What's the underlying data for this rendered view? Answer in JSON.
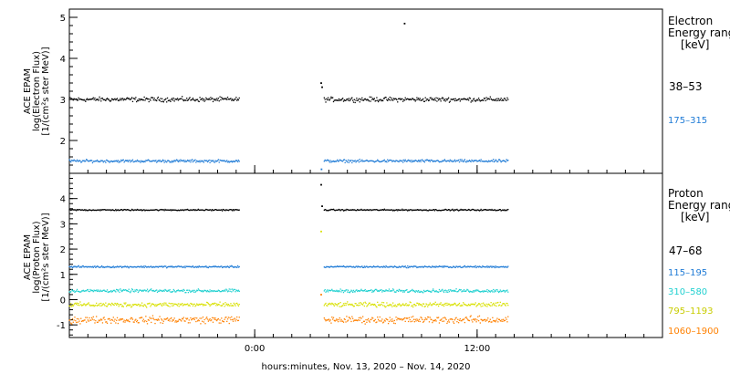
{
  "chart_data": [
    {
      "type": "scatter",
      "panel": "top",
      "ylabel": [
        "ACE EPAM",
        "log(Electron Flux)",
        "[1/(cm²s ster MeV)]"
      ],
      "ylim": [
        1.2,
        5.2
      ],
      "y_ticks": [
        2,
        3,
        4,
        5
      ],
      "legend_title": [
        "Electron",
        "Energy range",
        "[keV]"
      ],
      "legend_placement": "right",
      "grid": false,
      "series": [
        {
          "name": "38–53",
          "color": "#000000",
          "baseline": 3.0,
          "spread": 0.08,
          "segments": [
            [
              "2020-11-13 14:00",
              "2020-11-13 23:10"
            ],
            [
              "2020-11-14 03:45",
              "2020-11-14 13:40"
            ]
          ],
          "spikes": [
            [
              "2020-11-14 03:35",
              3.4
            ],
            [
              "2020-11-14 03:38",
              3.3
            ],
            [
              "2020-11-14 08:05",
              4.85
            ]
          ]
        },
        {
          "name": "175–315",
          "color": "#1f7bd6",
          "baseline": 1.5,
          "spread": 0.05,
          "segments": [
            [
              "2020-11-13 14:00",
              "2020-11-13 23:10"
            ],
            [
              "2020-11-14 03:45",
              "2020-11-14 13:40"
            ]
          ],
          "spikes": [
            [
              "2020-11-14 03:36",
              1.3
            ]
          ]
        }
      ]
    },
    {
      "type": "scatter",
      "panel": "bottom",
      "ylabel": [
        "ACE EPAM",
        "log(Proton Flux)",
        "[1/(cm²s ster MeV)]"
      ],
      "ylim": [
        -1.5,
        5.0
      ],
      "y_ticks": [
        -1,
        0,
        1,
        2,
        3,
        4
      ],
      "legend_title": [
        "Proton",
        "Energy range",
        "[keV]"
      ],
      "legend_placement": "right",
      "grid": false,
      "series": [
        {
          "name": "47–68",
          "color": "#000000",
          "baseline": 3.55,
          "spread": 0.04,
          "segments": [
            [
              "2020-11-13 14:00",
              "2020-11-13 23:10"
            ],
            [
              "2020-11-14 03:45",
              "2020-11-14 13:40"
            ]
          ],
          "spikes": [
            [
              "2020-11-14 03:35",
              4.55
            ],
            [
              "2020-11-14 03:38",
              3.7
            ]
          ]
        },
        {
          "name": "115–195",
          "color": "#1f7bd6",
          "baseline": 1.3,
          "spread": 0.05,
          "segments": [
            [
              "2020-11-13 14:00",
              "2020-11-13 23:10"
            ],
            [
              "2020-11-14 03:45",
              "2020-11-14 13:40"
            ]
          ],
          "spikes": []
        },
        {
          "name": "310–580",
          "color": "#20d0d0",
          "baseline": 0.35,
          "spread": 0.09,
          "segments": [
            [
              "2020-11-13 14:00",
              "2020-11-13 23:10"
            ],
            [
              "2020-11-14 03:45",
              "2020-11-14 13:40"
            ]
          ],
          "spikes": []
        },
        {
          "name": "795–1193",
          "color": "#d8e000",
          "baseline": -0.2,
          "spread": 0.13,
          "segments": [
            [
              "2020-11-13 14:00",
              "2020-11-13 23:10"
            ],
            [
              "2020-11-14 03:45",
              "2020-11-14 13:40"
            ]
          ],
          "spikes": [
            [
              "2020-11-14 03:35",
              2.7
            ]
          ]
        },
        {
          "name": "1060–1900",
          "color": "#ff8000",
          "baseline": -0.8,
          "spread": 0.2,
          "segments": [
            [
              "2020-11-13 14:00",
              "2020-11-13 23:10"
            ],
            [
              "2020-11-14 03:45",
              "2020-11-14 13:40"
            ]
          ],
          "spikes": [
            [
              "2020-11-14 03:35",
              0.2
            ]
          ]
        }
      ]
    }
  ],
  "x_axis": {
    "xlabel": "hours:minutes, Nov. 13, 2020 – Nov. 14, 2020",
    "xlim": [
      "2020-11-13 14:00",
      "2020-11-14 22:00"
    ],
    "tick_labels": [
      {
        "t": "2020-11-14 00:00",
        "label": "0:00"
      },
      {
        "t": "2020-11-14 12:00",
        "label": "12:00"
      }
    ]
  }
}
